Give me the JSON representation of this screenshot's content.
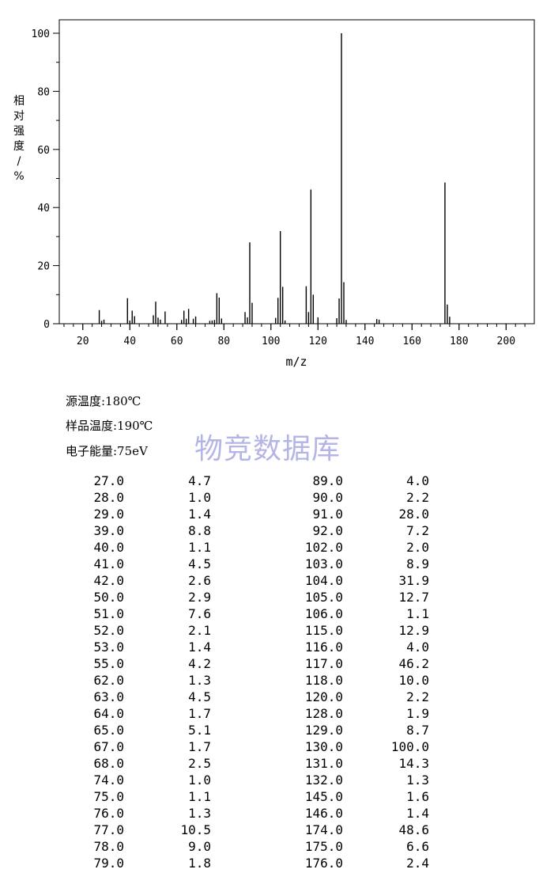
{
  "chart_data": {
    "type": "bar",
    "xlabel": "m/z",
    "ylabel": "相对强度/%",
    "xlim": [
      10,
      212
    ],
    "ylim": [
      0,
      105
    ],
    "xticks": [
      20,
      40,
      60,
      80,
      100,
      120,
      140,
      160,
      180,
      200
    ],
    "yticks": [
      0,
      20,
      40,
      60,
      80,
      100
    ],
    "grid": false,
    "x": [
      27,
      28,
      29,
      39,
      40,
      41,
      42,
      50,
      51,
      52,
      53,
      55,
      62,
      63,
      64,
      65,
      67,
      68,
      74,
      75,
      76,
      77,
      78,
      79,
      89,
      90,
      91,
      92,
      102,
      103,
      104,
      105,
      106,
      115,
      116,
      117,
      118,
      120,
      128,
      129,
      130,
      131,
      132,
      145,
      146,
      174,
      175,
      176
    ],
    "values": [
      4.7,
      1.0,
      1.4,
      8.8,
      1.1,
      4.5,
      2.6,
      2.9,
      7.6,
      2.1,
      1.4,
      4.2,
      1.3,
      4.5,
      1.7,
      5.1,
      1.7,
      2.5,
      1.0,
      1.1,
      1.3,
      10.5,
      9.0,
      1.8,
      4.0,
      2.2,
      28.0,
      7.2,
      2.0,
      8.9,
      31.9,
      12.7,
      1.1,
      12.9,
      4.0,
      46.2,
      10.0,
      2.2,
      1.9,
      8.7,
      100.0,
      14.3,
      1.3,
      1.6,
      1.4,
      48.6,
      6.6,
      2.4
    ]
  },
  "conditions": {
    "source_temp": "源温度:180℃",
    "sample_temp": "样品温度:190℃",
    "electron_energy": "电子能量:75eV"
  },
  "watermark": "物竞数据库",
  "peak_table": {
    "left": {
      "mz": [
        "27.0",
        "28.0",
        "29.0",
        "39.0",
        "40.0",
        "41.0",
        "42.0",
        "50.0",
        "51.0",
        "52.0",
        "53.0",
        "55.0",
        "62.0",
        "63.0",
        "64.0",
        "65.0",
        "67.0",
        "68.0",
        "74.0",
        "75.0",
        "76.0",
        "77.0",
        "78.0",
        "79.0"
      ],
      "intensity": [
        "4.7",
        "1.0",
        "1.4",
        "8.8",
        "1.1",
        "4.5",
        "2.6",
        "2.9",
        "7.6",
        "2.1",
        "1.4",
        "4.2",
        "1.3",
        "4.5",
        "1.7",
        "5.1",
        "1.7",
        "2.5",
        "1.0",
        "1.1",
        "1.3",
        "10.5",
        "9.0",
        "1.8"
      ]
    },
    "right": {
      "mz": [
        "89.0",
        "90.0",
        "91.0",
        "92.0",
        "102.0",
        "103.0",
        "104.0",
        "105.0",
        "106.0",
        "115.0",
        "116.0",
        "117.0",
        "118.0",
        "120.0",
        "128.0",
        "129.0",
        "130.0",
        "131.0",
        "132.0",
        "145.0",
        "146.0",
        "174.0",
        "175.0",
        "176.0"
      ],
      "intensity": [
        "4.0",
        "2.2",
        "28.0",
        "7.2",
        "2.0",
        "8.9",
        "31.9",
        "12.7",
        "1.1",
        "12.9",
        "4.0",
        "46.2",
        "10.0",
        "2.2",
        "1.9",
        "8.7",
        "100.0",
        "14.3",
        "1.3",
        "1.6",
        "1.4",
        "48.6",
        "6.6",
        "2.4"
      ]
    }
  }
}
